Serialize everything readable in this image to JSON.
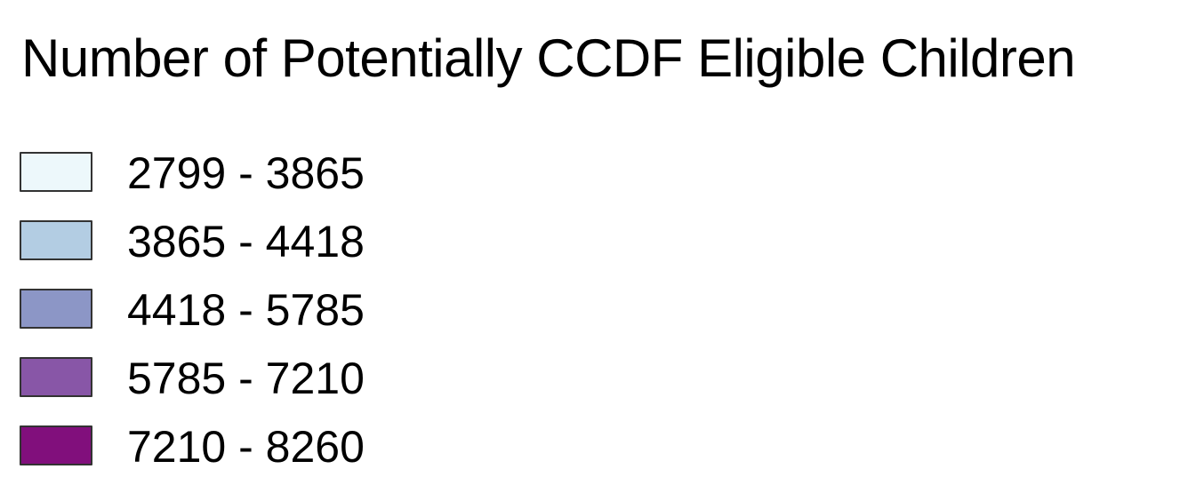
{
  "legend": {
    "title": "Number of Potentially CCDF Eligible Children",
    "items": [
      {
        "label": "2799 - 3865",
        "color": "#edf8fb"
      },
      {
        "label": "3865 - 4418",
        "color": "#b3cde3"
      },
      {
        "label": "4418 - 5785",
        "color": "#8c96c6"
      },
      {
        "label": "5785 - 7210",
        "color": "#8856a7"
      },
      {
        "label": "7210 - 8260",
        "color": "#810f7c"
      }
    ]
  }
}
